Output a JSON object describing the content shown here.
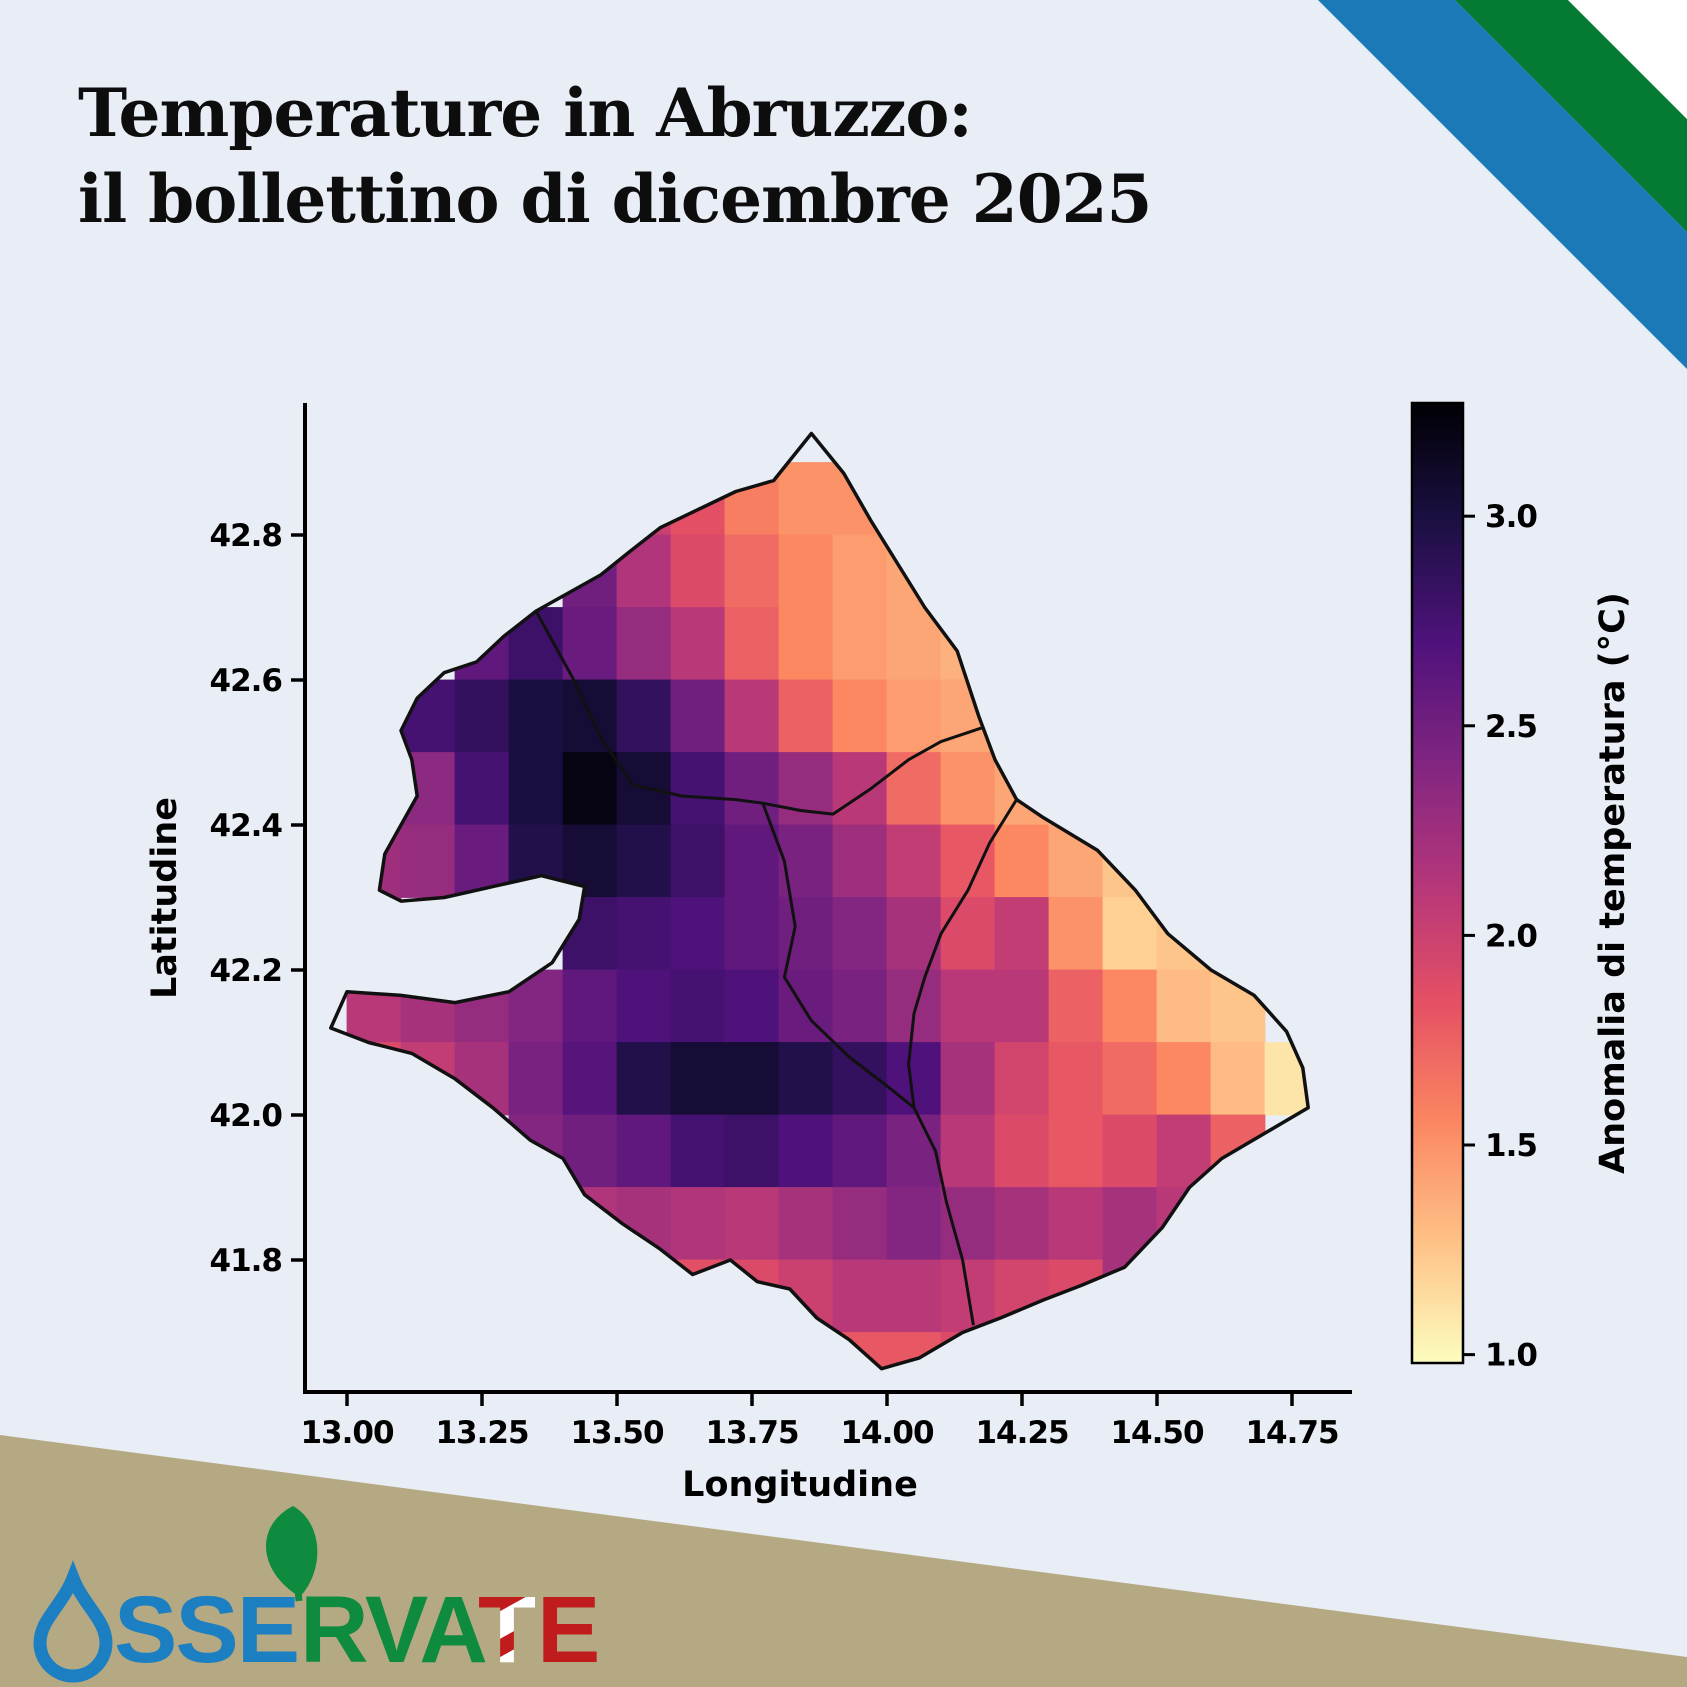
{
  "title": {
    "line1": "Temperature in Abruzzo:",
    "line2": "il bollettino di dicembre 2025"
  },
  "colors": {
    "background": "#e8edf6",
    "ink": "#000000",
    "ribbon_blue": "#1b79b8",
    "ribbon_green": "#047a33",
    "ribbon_white": "#ffffff",
    "footer_band": "#b4a982",
    "logo_blue": "#1c7fc2",
    "logo_green": "#0f8b3f",
    "logo_red": "#c01b1d",
    "boundary": "#111111"
  },
  "logo": {
    "text_blue": "SSE",
    "text_green": "RVA",
    "text_red_t": "T",
    "text_red_e": "E"
  },
  "chart_data": {
    "type": "heatmap",
    "xlabel": "Longitudine",
    "ylabel": "Latitudine",
    "x_ticks": [
      13.0,
      13.25,
      13.5,
      13.75,
      14.0,
      14.25,
      14.5,
      14.75
    ],
    "x_tick_labels": [
      "13.00",
      "13.25",
      "13.50",
      "13.75",
      "14.00",
      "14.25",
      "14.50",
      "14.75"
    ],
    "y_ticks": [
      42.8,
      42.6,
      42.4,
      42.2,
      42.0,
      41.8
    ],
    "y_tick_labels": [
      "42.8",
      "42.6",
      "42.4",
      "42.2",
      "42.0",
      "41.8"
    ],
    "xlim": [
      12.922,
      14.861
    ],
    "ylim": [
      41.618,
      42.979
    ],
    "grid_on": false,
    "colorbar": {
      "label": "Anomalia di temperatura (°C)",
      "ticks": [
        1.0,
        1.5,
        2.0,
        2.5,
        3.0
      ],
      "tick_labels": [
        "1.0",
        "1.5",
        "2.0",
        "2.5",
        "3.0"
      ],
      "vmin": 0.98,
      "vmax": 3.27,
      "colormap": "magma_r",
      "palette_top_to_bottom": [
        "#000004",
        "#1c1044",
        "#4f127b",
        "#812581",
        "#b5367a",
        "#e55064",
        "#fb8761",
        "#fec287",
        "#fcfdbf"
      ]
    },
    "grid": {
      "lon_left": 13.0,
      "lat_top": 42.9,
      "dlon": 0.1,
      "dlat": 0.1,
      "values": [
        [
          null,
          null,
          null,
          null,
          null,
          2.0,
          1.85,
          1.6,
          1.5,
          1.5,
          null,
          null,
          null,
          null,
          null,
          null,
          null,
          null
        ],
        [
          null,
          null,
          null,
          null,
          2.5,
          2.15,
          1.9,
          1.7,
          1.55,
          1.45,
          1.4,
          null,
          null,
          null,
          null,
          null,
          null,
          null
        ],
        [
          null,
          null,
          2.6,
          2.8,
          2.55,
          2.3,
          2.1,
          1.75,
          1.55,
          1.45,
          1.4,
          1.35,
          null,
          null,
          null,
          null,
          null,
          null
        ],
        [
          null,
          2.75,
          2.85,
          3.0,
          3.05,
          2.85,
          2.5,
          2.1,
          1.75,
          1.55,
          1.45,
          1.4,
          1.3,
          null,
          null,
          null,
          null,
          null
        ],
        [
          null,
          2.35,
          2.75,
          3.0,
          3.2,
          3.05,
          2.75,
          2.5,
          2.3,
          2.1,
          1.7,
          1.5,
          1.4,
          1.3,
          null,
          null,
          null,
          null
        ],
        [
          2.25,
          2.3,
          2.55,
          2.95,
          3.05,
          2.95,
          2.8,
          2.6,
          2.45,
          2.25,
          2.05,
          1.8,
          1.55,
          1.4,
          1.25,
          null,
          null,
          null
        ],
        [
          2.2,
          null,
          null,
          null,
          2.8,
          2.75,
          2.7,
          2.6,
          2.5,
          2.4,
          2.2,
          1.9,
          2.05,
          1.5,
          1.2,
          1.25,
          null,
          null
        ],
        [
          2.1,
          2.2,
          2.3,
          2.4,
          2.6,
          2.7,
          2.75,
          2.7,
          2.55,
          2.45,
          2.3,
          2.1,
          2.1,
          1.75,
          1.55,
          1.3,
          1.25,
          null
        ],
        [
          1.9,
          2.05,
          2.2,
          2.45,
          2.65,
          2.95,
          3.05,
          3.05,
          2.95,
          2.85,
          2.7,
          2.2,
          1.95,
          1.8,
          1.7,
          1.55,
          1.3,
          1.1
        ],
        [
          null,
          null,
          null,
          2.4,
          2.5,
          2.6,
          2.75,
          2.8,
          2.7,
          2.6,
          2.45,
          2.1,
          1.9,
          1.8,
          1.9,
          2.05,
          1.75,
          null
        ],
        [
          null,
          null,
          null,
          null,
          2.15,
          2.2,
          2.15,
          2.1,
          2.2,
          2.3,
          2.4,
          2.3,
          2.2,
          2.1,
          2.2,
          2.1,
          null,
          null
        ],
        [
          null,
          null,
          null,
          null,
          null,
          1.9,
          1.85,
          1.9,
          2.0,
          2.1,
          2.1,
          2.05,
          1.95,
          1.9,
          2.2,
          null,
          null,
          null
        ],
        [
          null,
          null,
          null,
          null,
          null,
          null,
          null,
          null,
          null,
          1.8,
          1.8,
          1.9,
          null,
          null,
          null,
          null,
          null,
          null
        ]
      ]
    },
    "region_outline": [
      [
        13.86,
        42.94
      ],
      [
        13.92,
        42.885
      ],
      [
        13.97,
        42.82
      ],
      [
        14.02,
        42.76
      ],
      [
        14.07,
        42.7
      ],
      [
        14.13,
        42.64
      ],
      [
        14.17,
        42.55
      ],
      [
        14.2,
        42.49
      ],
      [
        14.24,
        42.435
      ],
      [
        14.29,
        42.41
      ],
      [
        14.39,
        42.365
      ],
      [
        14.46,
        42.31
      ],
      [
        14.52,
        42.25
      ],
      [
        14.6,
        42.2
      ],
      [
        14.68,
        42.165
      ],
      [
        14.74,
        42.115
      ],
      [
        14.77,
        42.065
      ],
      [
        14.78,
        42.01
      ],
      [
        14.7,
        41.975
      ],
      [
        14.62,
        41.94
      ],
      [
        14.56,
        41.9
      ],
      [
        14.51,
        41.845
      ],
      [
        14.44,
        41.79
      ],
      [
        14.36,
        41.765
      ],
      [
        14.29,
        41.745
      ],
      [
        14.21,
        41.72
      ],
      [
        14.14,
        41.7
      ],
      [
        14.06,
        41.665
      ],
      [
        13.99,
        41.65
      ],
      [
        13.93,
        41.69
      ],
      [
        13.87,
        41.72
      ],
      [
        13.82,
        41.76
      ],
      [
        13.76,
        41.77
      ],
      [
        13.71,
        41.8
      ],
      [
        13.64,
        41.78
      ],
      [
        13.58,
        41.815
      ],
      [
        13.51,
        41.85
      ],
      [
        13.44,
        41.89
      ],
      [
        13.4,
        41.94
      ],
      [
        13.34,
        41.965
      ],
      [
        13.27,
        42.01
      ],
      [
        13.2,
        42.05
      ],
      [
        13.12,
        42.085
      ],
      [
        13.04,
        42.1
      ],
      [
        12.97,
        42.12
      ],
      [
        13.0,
        42.17
      ],
      [
        13.1,
        42.165
      ],
      [
        13.2,
        42.155
      ],
      [
        13.3,
        42.17
      ],
      [
        13.38,
        42.21
      ],
      [
        13.43,
        42.27
      ],
      [
        13.44,
        42.315
      ],
      [
        13.36,
        42.33
      ],
      [
        13.27,
        42.315
      ],
      [
        13.18,
        42.3
      ],
      [
        13.1,
        42.295
      ],
      [
        13.06,
        42.31
      ],
      [
        13.07,
        42.36
      ],
      [
        13.1,
        42.4
      ],
      [
        13.13,
        42.44
      ],
      [
        13.12,
        42.49
      ],
      [
        13.1,
        42.53
      ],
      [
        13.13,
        42.575
      ],
      [
        13.18,
        42.61
      ],
      [
        13.24,
        42.625
      ],
      [
        13.29,
        42.66
      ],
      [
        13.35,
        42.695
      ],
      [
        13.41,
        42.72
      ],
      [
        13.47,
        42.745
      ],
      [
        13.52,
        42.775
      ],
      [
        13.58,
        42.81
      ],
      [
        13.65,
        42.835
      ],
      [
        13.72,
        42.86
      ],
      [
        13.79,
        42.875
      ]
    ],
    "province_borders": [
      [
        [
          13.35,
          42.695
        ],
        [
          13.42,
          42.6
        ],
        [
          13.47,
          42.52
        ],
        [
          13.53,
          42.455
        ],
        [
          13.62,
          42.44
        ],
        [
          13.72,
          42.435
        ],
        [
          13.77,
          42.43
        ],
        [
          13.84,
          42.42
        ],
        [
          13.9,
          42.415
        ],
        [
          13.97,
          42.45
        ],
        [
          14.04,
          42.49
        ],
        [
          14.1,
          42.515
        ],
        [
          14.18,
          42.535
        ]
      ],
      [
        [
          13.77,
          42.43
        ],
        [
          13.81,
          42.35
        ],
        [
          13.83,
          42.26
        ],
        [
          13.81,
          42.19
        ],
        [
          13.86,
          42.13
        ],
        [
          13.93,
          42.08
        ],
        [
          14.0,
          42.04
        ],
        [
          14.05,
          42.01
        ]
      ],
      [
        [
          14.24,
          42.435
        ],
        [
          14.19,
          42.375
        ],
        [
          14.15,
          42.31
        ],
        [
          14.1,
          42.25
        ],
        [
          14.07,
          42.19
        ],
        [
          14.05,
          42.14
        ],
        [
          14.04,
          42.07
        ],
        [
          14.05,
          42.01
        ],
        [
          14.09,
          41.95
        ],
        [
          14.11,
          41.88
        ],
        [
          14.14,
          41.8
        ],
        [
          14.16,
          41.71
        ]
      ]
    ]
  }
}
